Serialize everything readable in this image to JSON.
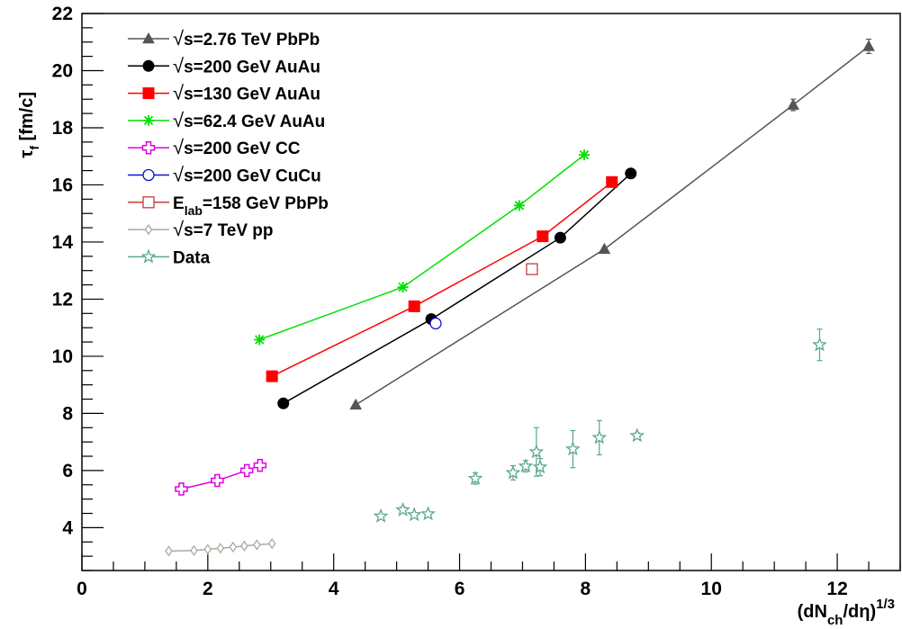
{
  "chart_data": {
    "type": "scatter",
    "xlabel": {
      "main": "(dN",
      "sub": "ch",
      "mid": "/dη)",
      "sup": "1/3"
    },
    "ylabel": {
      "main": "τ",
      "sub": "f",
      "rest": " [fm/c]"
    },
    "xlim": [
      0,
      13
    ],
    "ylim": [
      2.5,
      22
    ],
    "xticks": [
      0,
      2,
      4,
      6,
      8,
      10,
      12
    ],
    "yticks": [
      4,
      6,
      8,
      10,
      12,
      14,
      16,
      18,
      20,
      22
    ],
    "legend_position": "top-left",
    "series": [
      {
        "name": "√s=2.76 TeV PbPb",
        "prefix": "√",
        "label": "s=2.76 TeV PbPb",
        "color": "#555555",
        "marker": "triangle",
        "line": true,
        "x": [
          4.35,
          8.3,
          11.3,
          12.5
        ],
        "y": [
          8.3,
          13.75,
          18.8,
          20.85
        ],
        "err": [
          0,
          0,
          0.2,
          0.25
        ]
      },
      {
        "name": "√s=200 GeV AuAu",
        "prefix": "√",
        "label": "s=200 GeV AuAu",
        "color": "#000000",
        "marker": "circle",
        "line": true,
        "x": [
          3.2,
          5.55,
          7.6,
          8.72
        ],
        "y": [
          8.35,
          11.3,
          14.15,
          16.4
        ]
      },
      {
        "name": "√s=130 GeV AuAu",
        "prefix": "√",
        "label": "s=130 GeV AuAu",
        "color": "#ff0000",
        "marker": "square",
        "line": true,
        "x": [
          3.02,
          5.28,
          7.32,
          8.42
        ],
        "y": [
          9.3,
          11.75,
          14.2,
          16.1
        ]
      },
      {
        "name": "√s=62.4 GeV AuAu",
        "prefix": "√",
        "label": "s=62.4 GeV AuAu",
        "color": "#00e000",
        "marker": "star",
        "line": true,
        "x": [
          2.82,
          5.1,
          6.95,
          7.98
        ],
        "y": [
          10.58,
          12.42,
          15.28,
          17.05
        ]
      },
      {
        "name": "√s=200 GeV CC",
        "prefix": "√",
        "label": "s=200 GeV CC",
        "color": "#e000e0",
        "marker": "cross",
        "line": true,
        "x": [
          1.58,
          2.15,
          2.62,
          2.83
        ],
        "y": [
          5.35,
          5.65,
          6.0,
          6.18
        ]
      },
      {
        "name": "√s=200 GeV CuCu",
        "prefix": "√",
        "label": "s=200 GeV CuCu",
        "color": "#1010d0",
        "marker": "open-circle",
        "line": false,
        "x": [
          5.62
        ],
        "y": [
          11.15
        ],
        "err": [
          0.12
        ]
      },
      {
        "name": "Elab=158 GeV PbPb",
        "prefix": "",
        "label": "E",
        "label_sub": "lab",
        "label_rest": "=158 GeV PbPb",
        "color": "#c04040",
        "marker": "open-square",
        "line": false,
        "x": [
          7.15
        ],
        "y": [
          13.05
        ]
      },
      {
        "name": "√s=7 TeV pp",
        "prefix": "√",
        "label": "s=7 TeV pp",
        "color": "#b0a8a0",
        "marker": "open-diamond",
        "line": true,
        "x": [
          1.38,
          1.78,
          2.0,
          2.2,
          2.4,
          2.58,
          2.78,
          3.02
        ],
        "y": [
          3.18,
          3.2,
          3.24,
          3.28,
          3.32,
          3.36,
          3.4,
          3.44
        ]
      },
      {
        "name": "Data",
        "prefix": "",
        "label": "Data",
        "color": "#5aa888",
        "marker": "open-star",
        "line": false,
        "x": [
          4.75,
          5.1,
          5.28,
          5.5,
          6.25,
          6.85,
          7.05,
          7.22,
          7.28,
          7.8,
          8.22,
          8.82,
          11.72
        ],
        "y": [
          4.4,
          4.62,
          4.45,
          4.48,
          5.72,
          5.92,
          6.15,
          6.65,
          6.12,
          6.75,
          7.15,
          7.22,
          10.4
        ],
        "err": [
          0,
          0.1,
          0,
          0,
          0.2,
          0.25,
          0.2,
          0.85,
          0.3,
          0.65,
          0.6,
          0.1,
          0.55
        ]
      }
    ]
  }
}
